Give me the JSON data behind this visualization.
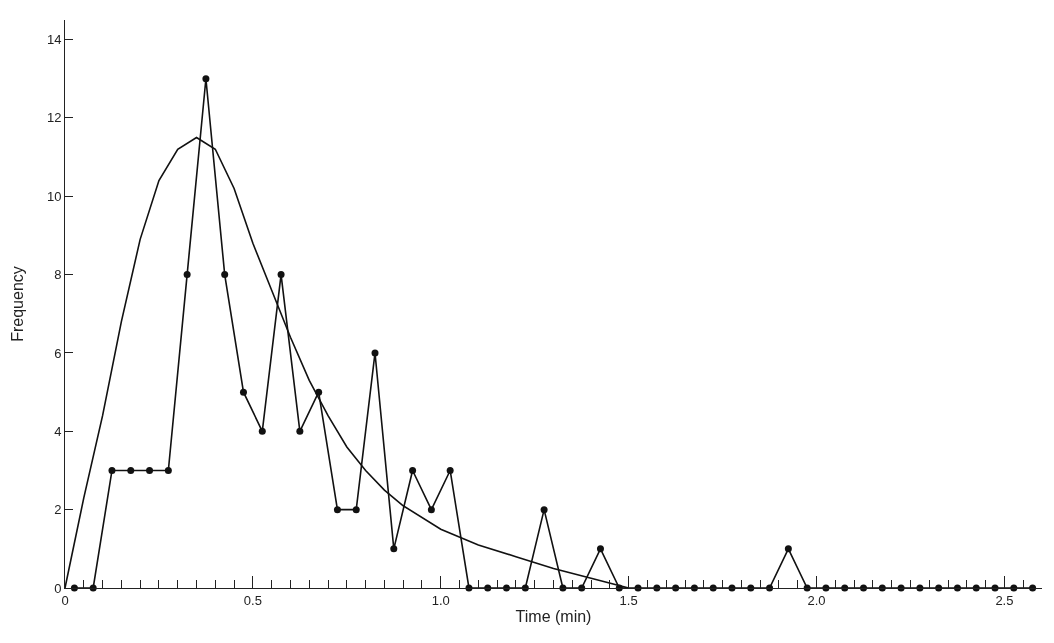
{
  "chart_data": {
    "type": "line",
    "xlabel": "Time (min)",
    "ylabel": "Frequency",
    "marker": "circle",
    "line_style": "solid",
    "xlim": [
      0,
      2.6
    ],
    "ylim": [
      0,
      14.5
    ],
    "yticks": [
      0,
      2,
      4,
      6,
      8,
      10,
      12,
      14
    ],
    "xticks": [
      {
        "value": 0,
        "label": "0"
      },
      {
        "value": 0.05,
        "label": null
      },
      {
        "value": 0.1,
        "label": null
      },
      {
        "value": 0.15,
        "label": null
      },
      {
        "value": 0.2,
        "label": null
      },
      {
        "value": 0.25,
        "label": null
      },
      {
        "value": 0.3,
        "label": null
      },
      {
        "value": 0.35,
        "label": null
      },
      {
        "value": 0.4,
        "label": null
      },
      {
        "value": 0.45,
        "label": null
      },
      {
        "value": 0.5,
        "label": "0.5"
      },
      {
        "value": 0.55,
        "label": null
      },
      {
        "value": 0.6,
        "label": null
      },
      {
        "value": 0.65,
        "label": null
      },
      {
        "value": 0.7,
        "label": null
      },
      {
        "value": 0.75,
        "label": null
      },
      {
        "value": 0.8,
        "label": null
      },
      {
        "value": 0.85,
        "label": null
      },
      {
        "value": 0.9,
        "label": null
      },
      {
        "value": 0.95,
        "label": null
      },
      {
        "value": 1,
        "label": "1.0"
      },
      {
        "value": 1.05,
        "label": null
      },
      {
        "value": 1.1,
        "label": null
      },
      {
        "value": 1.15,
        "label": null
      },
      {
        "value": 1.2,
        "label": null
      },
      {
        "value": 1.25,
        "label": null
      },
      {
        "value": 1.3,
        "label": null
      },
      {
        "value": 1.35,
        "label": null
      },
      {
        "value": 1.4,
        "label": null
      },
      {
        "value": 1.45,
        "label": null
      },
      {
        "value": 1.5,
        "label": "1.5"
      },
      {
        "value": 1.55,
        "label": null
      },
      {
        "value": 1.6,
        "label": null
      },
      {
        "value": 1.65,
        "label": null
      },
      {
        "value": 1.7,
        "label": null
      },
      {
        "value": 1.75,
        "label": null
      },
      {
        "value": 1.8,
        "label": null
      },
      {
        "value": 1.85,
        "label": null
      },
      {
        "value": 1.9,
        "label": null
      },
      {
        "value": 1.95,
        "label": null
      },
      {
        "value": 2,
        "label": "2.0"
      },
      {
        "value": 2.05,
        "label": null
      },
      {
        "value": 2.1,
        "label": null
      },
      {
        "value": 2.15,
        "label": null
      },
      {
        "value": 2.2,
        "label": null
      },
      {
        "value": 2.25,
        "label": null
      },
      {
        "value": 2.3,
        "label": null
      },
      {
        "value": 2.35,
        "label": null
      },
      {
        "value": 2.4,
        "label": null
      },
      {
        "value": 2.45,
        "label": null
      },
      {
        "value": 2.5,
        "label": "2.5"
      },
      {
        "value": 2.55,
        "label": null
      }
    ],
    "series": [
      {
        "color": "#111111",
        "x": [
          0.025,
          0.075,
          0.125,
          0.175,
          0.225,
          0.275,
          0.325,
          0.375,
          0.425,
          0.475,
          0.525,
          0.575,
          0.625,
          0.675,
          0.725,
          0.775,
          0.825,
          0.875,
          0.925,
          0.975,
          1.025,
          1.075,
          1.125,
          1.175,
          1.225,
          1.275,
          1.325,
          1.375,
          1.425,
          1.475,
          1.525,
          1.575,
          1.625,
          1.675,
          1.725,
          1.775,
          1.825,
          1.875,
          1.925,
          1.975,
          2.025,
          2.075,
          2.125,
          2.175,
          2.225,
          2.275,
          2.325,
          2.375,
          2.425,
          2.475,
          2.525,
          2.575
        ],
        "values": [
          0,
          0,
          3,
          3,
          3,
          3,
          8,
          13,
          8,
          5,
          4,
          8,
          4,
          5,
          2,
          2,
          6,
          1,
          3,
          2,
          3,
          0,
          0,
          0,
          0,
          2,
          0,
          0,
          1,
          0,
          0,
          0,
          0,
          0,
          0,
          0,
          0,
          0,
          1,
          0,
          0,
          0,
          0,
          0,
          0,
          0,
          0,
          0,
          0,
          0,
          0,
          0
        ]
      },
      {
        "color": "#111111",
        "marker": "none",
        "x": [
          0,
          0.05,
          0.1,
          0.15,
          0.2,
          0.25,
          0.3,
          0.35,
          0.4,
          0.45,
          0.5,
          0.55,
          0.6,
          0.65,
          0.7,
          0.75,
          0.8,
          0.85,
          0.9,
          1.0,
          1.1,
          1.2,
          1.3,
          1.4,
          1.5
        ],
        "values": [
          0,
          2.3,
          4.4,
          6.8,
          8.9,
          10.4,
          11.2,
          11.5,
          11.2,
          10.2,
          8.8,
          7.6,
          6.4,
          5.3,
          4.4,
          3.6,
          3.0,
          2.5,
          2.1,
          1.5,
          1.1,
          0.8,
          0.5,
          0.25,
          0
        ]
      }
    ]
  }
}
